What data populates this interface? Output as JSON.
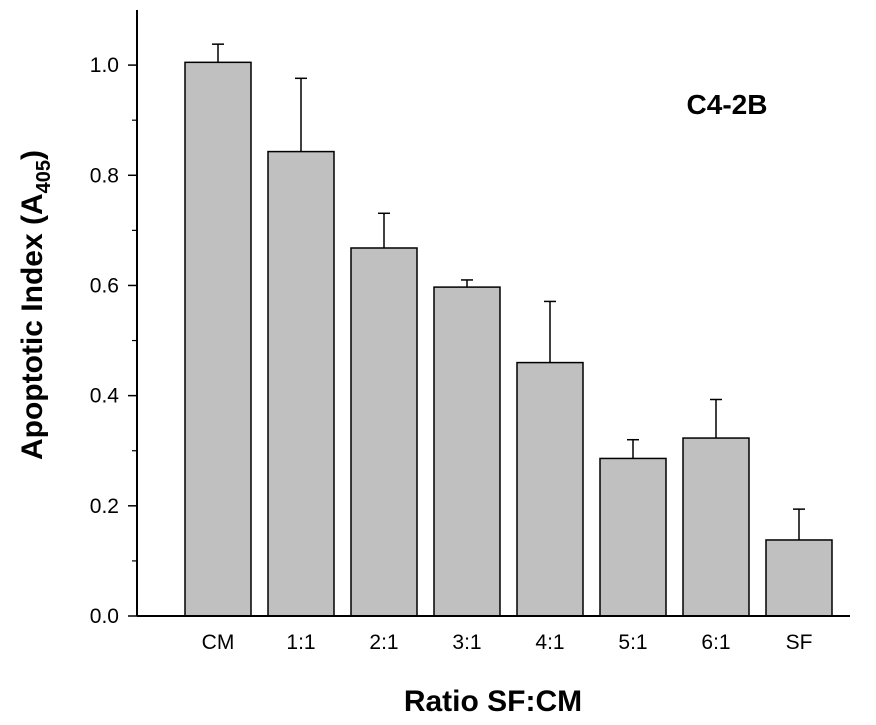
{
  "chart_data": {
    "type": "bar",
    "categories": [
      "CM",
      "1:1",
      "2:1",
      "3:1",
      "4:1",
      "5:1",
      "6:1",
      "SF"
    ],
    "values": [
      1.005,
      0.843,
      0.668,
      0.597,
      0.46,
      0.286,
      0.323,
      0.138
    ],
    "error_upper": [
      1.038,
      0.976,
      0.731,
      0.61,
      0.571,
      0.32,
      0.393,
      0.194
    ],
    "xlabel": "Ratio SF:CM",
    "ylabel": {
      "text": "Apoptotic Index (A",
      "subscript": "405",
      "suffix": ")"
    },
    "annotation": "C4-2B",
    "ylim": [
      0.0,
      1.1
    ],
    "yticks": [
      "0.0",
      "0.2",
      "0.4",
      "0.6",
      "0.8",
      "1.0"
    ],
    "grid": false,
    "colors": {
      "bar_fill": "#c0c0c0",
      "bar_stroke": "#000000",
      "axis": "#000000"
    }
  }
}
